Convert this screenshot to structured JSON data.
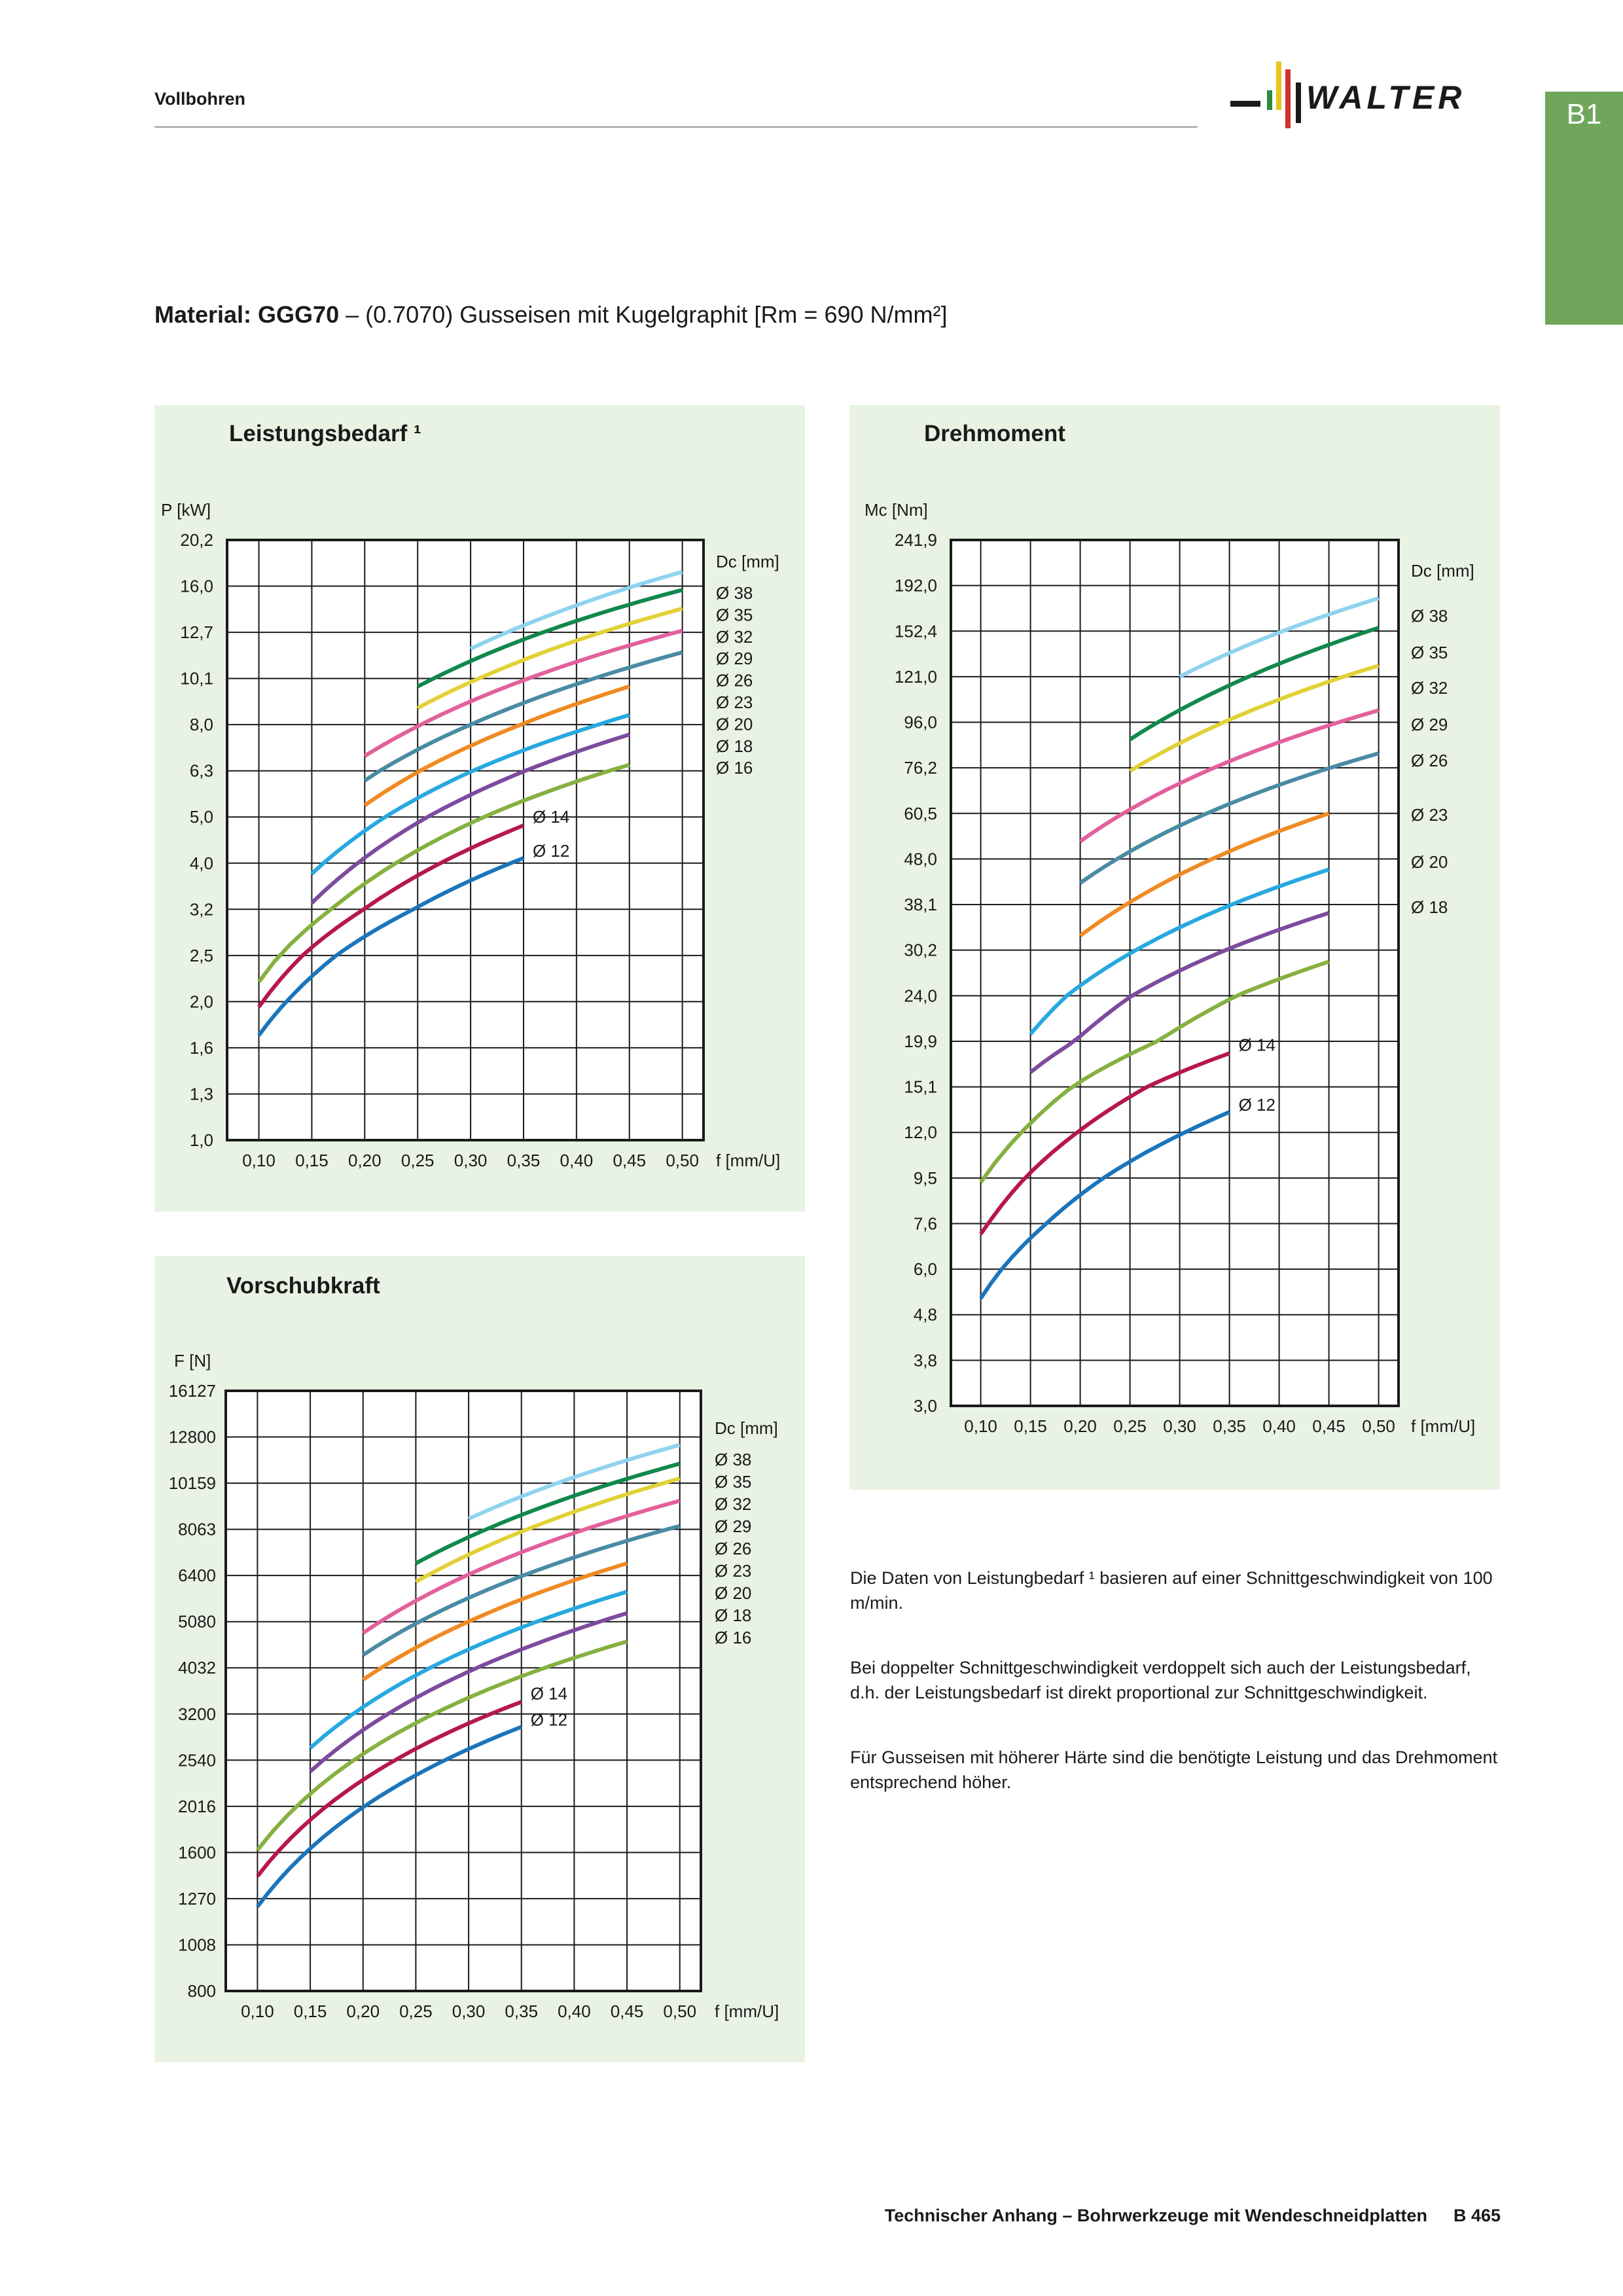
{
  "header": {
    "section": "Vollbohren",
    "logo_text": "WALTER",
    "tab_label": "B1"
  },
  "material": {
    "label": "Material: GGG70",
    "rest": " – (0.7070) Gusseisen mit Kugelgraphit [Rm = 690 N/mm²]"
  },
  "colors": {
    "panel_bg": "#e9f3e4",
    "tab": "#6fa65c",
    "series": {
      "Ø 12": "#1b75bb",
      "Ø 14": "#b5174e",
      "Ø 16": "#86b040",
      "Ø 18": "#7d4b9e",
      "Ø 20": "#27a9df",
      "Ø 23": "#f08a22",
      "Ø 26": "#4a8ba4",
      "Ø 29": "#e2609c",
      "Ø 32": "#e1d136",
      "Ø 35": "#11884d",
      "Ø 38": "#8fd3ee"
    }
  },
  "chart_data": [
    {
      "id": "power",
      "type": "line",
      "title": "Leistungsbedarf ¹",
      "ylabel": "P [kW]",
      "xlabel": "f [mm/U]",
      "legend_title": "Dc [mm]",
      "x_ticks": [
        "0,10",
        "0,15",
        "0,20",
        "0,25",
        "0,30",
        "0,35",
        "0,40",
        "0,45",
        "0,50"
      ],
      "y_ticks": [
        "1,0",
        "1,3",
        "1,6",
        "2,0",
        "2,5",
        "3,2",
        "4,0",
        "5,0",
        "6,3",
        "8,0",
        "10,1",
        "12,7",
        "16,0",
        "20,2"
      ],
      "legend": [
        "Ø 38",
        "Ø 35",
        "Ø 32",
        "Ø 29",
        "Ø 26",
        "Ø 23",
        "Ø 20",
        "Ø 18",
        "Ø 16"
      ],
      "inline_labels": [
        "Ø 14",
        "Ø 12"
      ],
      "xlim": [
        0.07,
        0.52
      ],
      "ylim_index": [
        0,
        13
      ],
      "series": [
        {
          "name": "Ø 12",
          "x": [
            0.1,
            0.35
          ],
          "y": [
            1.7,
            4.1
          ]
        },
        {
          "name": "Ø 14",
          "x": [
            0.1,
            0.35
          ],
          "y": [
            1.95,
            4.8
          ]
        },
        {
          "name": "Ø 16",
          "x": [
            0.1,
            0.45
          ],
          "y": [
            2.2,
            6.5
          ]
        },
        {
          "name": "Ø 18",
          "x": [
            0.15,
            0.45
          ],
          "y": [
            3.3,
            7.6
          ]
        },
        {
          "name": "Ø 20",
          "x": [
            0.15,
            0.45
          ],
          "y": [
            3.8,
            8.4
          ]
        },
        {
          "name": "Ø 23",
          "x": [
            0.2,
            0.45
          ],
          "y": [
            5.3,
            9.7
          ]
        },
        {
          "name": "Ø 26",
          "x": [
            0.2,
            0.5
          ],
          "y": [
            6.0,
            11.5
          ]
        },
        {
          "name": "Ø 29",
          "x": [
            0.2,
            0.5
          ],
          "y": [
            6.8,
            12.8
          ]
        },
        {
          "name": "Ø 32",
          "x": [
            0.25,
            0.5
          ],
          "y": [
            8.7,
            14.3
          ]
        },
        {
          "name": "Ø 35",
          "x": [
            0.25,
            0.5
          ],
          "y": [
            9.7,
            15.7
          ]
        },
        {
          "name": "Ø 38",
          "x": [
            0.3,
            0.5
          ],
          "y": [
            11.7,
            17.2
          ]
        }
      ]
    },
    {
      "id": "torque",
      "type": "line",
      "title": "Drehmoment",
      "ylabel": "Mc [Nm]",
      "xlabel": "f [mm/U]",
      "legend_title": "Dc [mm]",
      "x_ticks": [
        "0,10",
        "0,15",
        "0,20",
        "0,25",
        "0,30",
        "0,35",
        "0,40",
        "0,45",
        "0,50"
      ],
      "y_ticks": [
        "3,0",
        "3,8",
        "4,8",
        "6,0",
        "7,6",
        "9,5",
        "12,0",
        "15,1",
        "19,9",
        "24,0",
        "30,2",
        "38,1",
        "48,0",
        "60,5",
        "76,2",
        "96,0",
        "121,0",
        "152,4",
        "192,0",
        "241,9"
      ],
      "legend": [
        "Ø 38",
        "Ø 35",
        "Ø 32",
        "Ø 29",
        "Ø 26",
        "Ø 23",
        "Ø 20",
        "Ø 18"
      ],
      "inline_labels": [
        "Ø 14",
        "Ø 12"
      ],
      "xlim": [
        0.07,
        0.52
      ],
      "ylim_index": [
        0,
        19
      ],
      "series": [
        {
          "name": "Ø 12",
          "x": [
            0.1,
            0.35
          ],
          "y": [
            5.2,
            13.3
          ]
        },
        {
          "name": "Ø 14",
          "x": [
            0.1,
            0.35
          ],
          "y": [
            7.2,
            18.5
          ]
        },
        {
          "name": "Ø 16",
          "x": [
            0.1,
            0.45
          ],
          "y": [
            9.3,
            28.5
          ]
        },
        {
          "name": "Ø 18",
          "x": [
            0.15,
            0.45
          ],
          "y": [
            16.5,
            36.5
          ]
        },
        {
          "name": "Ø 20",
          "x": [
            0.15,
            0.45
          ],
          "y": [
            20.5,
            45.5
          ]
        },
        {
          "name": "Ø 23",
          "x": [
            0.2,
            0.45
          ],
          "y": [
            32.5,
            60.5
          ]
        },
        {
          "name": "Ø 26",
          "x": [
            0.2,
            0.5
          ],
          "y": [
            42.5,
            82.0
          ]
        },
        {
          "name": "Ø 29",
          "x": [
            0.2,
            0.5
          ],
          "y": [
            52.5,
            102.0
          ]
        },
        {
          "name": "Ø 32",
          "x": [
            0.25,
            0.5
          ],
          "y": [
            75.0,
            128.0
          ]
        },
        {
          "name": "Ø 35",
          "x": [
            0.25,
            0.5
          ],
          "y": [
            88.0,
            155.0
          ]
        },
        {
          "name": "Ø 38",
          "x": [
            0.3,
            0.5
          ],
          "y": [
            121.0,
            180.0
          ]
        }
      ]
    },
    {
      "id": "feed",
      "type": "line",
      "title": "Vorschubkraft",
      "ylabel": "F [N]",
      "xlabel": "f [mm/U]",
      "legend_title": "Dc [mm]",
      "x_ticks": [
        "0,10",
        "0,15",
        "0,20",
        "0,25",
        "0,30",
        "0,35",
        "0,40",
        "0,45",
        "0,50"
      ],
      "y_ticks": [
        "800",
        "1008",
        "1270",
        "1600",
        "2016",
        "2540",
        "3200",
        "4032",
        "5080",
        "6400",
        "8063",
        "10159",
        "12800",
        "16127"
      ],
      "legend": [
        "Ø 38",
        "Ø 35",
        "Ø 32",
        "Ø 29",
        "Ø 26",
        "Ø 23",
        "Ø 20",
        "Ø 18",
        "Ø 16"
      ],
      "inline_labels": [
        "Ø 14",
        "Ø 12"
      ],
      "xlim": [
        0.07,
        0.52
      ],
      "ylim_index": [
        0,
        13
      ],
      "series": [
        {
          "name": "Ø 12",
          "x": [
            0.1,
            0.35
          ],
          "y": [
            1220,
            3000
          ]
        },
        {
          "name": "Ø 14",
          "x": [
            0.1,
            0.35
          ],
          "y": [
            1420,
            3400
          ]
        },
        {
          "name": "Ø 16",
          "x": [
            0.1,
            0.45
          ],
          "y": [
            1620,
            4600
          ]
        },
        {
          "name": "Ø 18",
          "x": [
            0.15,
            0.45
          ],
          "y": [
            2400,
            5300
          ]
        },
        {
          "name": "Ø 20",
          "x": [
            0.15,
            0.45
          ],
          "y": [
            2700,
            5900
          ]
        },
        {
          "name": "Ø 23",
          "x": [
            0.2,
            0.45
          ],
          "y": [
            3800,
            6800
          ]
        },
        {
          "name": "Ø 26",
          "x": [
            0.2,
            0.5
          ],
          "y": [
            4300,
            8200
          ]
        },
        {
          "name": "Ø 29",
          "x": [
            0.2,
            0.5
          ],
          "y": [
            4800,
            9300
          ]
        },
        {
          "name": "Ø 32",
          "x": [
            0.25,
            0.5
          ],
          "y": [
            6200,
            10400
          ]
        },
        {
          "name": "Ø 35",
          "x": [
            0.25,
            0.5
          ],
          "y": [
            6800,
            11200
          ]
        },
        {
          "name": "Ø 38",
          "x": [
            0.3,
            0.5
          ],
          "y": [
            8500,
            12300
          ]
        }
      ]
    }
  ],
  "notes": [
    "Die Daten von Leistungbedarf ¹ basieren auf einer Schnittgeschwindigkeit von 100 m/min.",
    "Bei doppelter Schnittgeschwindigkeit verdoppelt sich auch der Leistungsbedarf, d.h. der Leistungsbedarf ist direkt proportional zur Schnittgeschwindigkeit.",
    "Für Gusseisen mit höherer Härte sind die benötigte Leistung und das Drehmoment entsprechend höher."
  ],
  "footer": {
    "text": "Technischer Anhang – Bohrwerkzeuge mit Wendeschneidplatten",
    "page": "B 465"
  }
}
